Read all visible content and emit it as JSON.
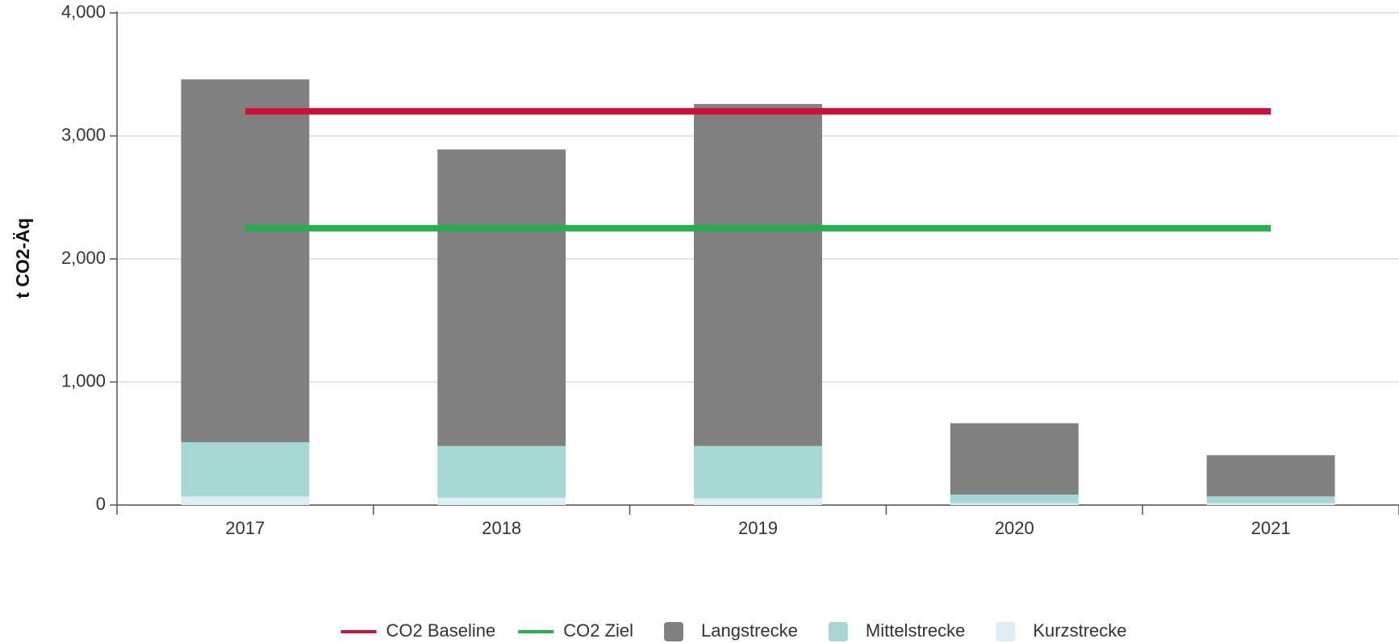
{
  "chart_data": {
    "type": "bar",
    "stacked": true,
    "y_label": "t CO2-Äq",
    "categories": [
      "2017",
      "2018",
      "2019",
      "2020",
      "2021"
    ],
    "series": [
      {
        "name": "CO2 Baseline",
        "type": "line",
        "color": "#d0103a",
        "values": [
          3200,
          3200,
          3200,
          3200,
          3200
        ]
      },
      {
        "name": "CO2 Ziel",
        "type": "line",
        "color": "#22b14c",
        "values": [
          2250,
          2250,
          2250,
          2250,
          2250
        ]
      },
      {
        "name": "Langstrecke",
        "type": "bar",
        "color": "#808080",
        "values": [
          2950,
          2410,
          2780,
          580,
          335
        ]
      },
      {
        "name": "Mittelstrecke",
        "type": "bar",
        "color": "#a5d8d3",
        "values": [
          440,
          420,
          425,
          70,
          55
        ]
      },
      {
        "name": "Kurzstrecke",
        "type": "bar",
        "color": "#ddeff3",
        "values": [
          70,
          60,
          55,
          15,
          15
        ]
      }
    ],
    "ylim": [
      0,
      4000
    ],
    "yticks": [
      0,
      {
        "value": 1000,
        "label": "1,000"
      },
      {
        "value": 2000,
        "label": "2,000"
      },
      {
        "value": 3000,
        "label": "3,000"
      },
      {
        "value": 4000,
        "label": "4,000"
      }
    ],
    "grid": true,
    "legend": "bottom"
  }
}
